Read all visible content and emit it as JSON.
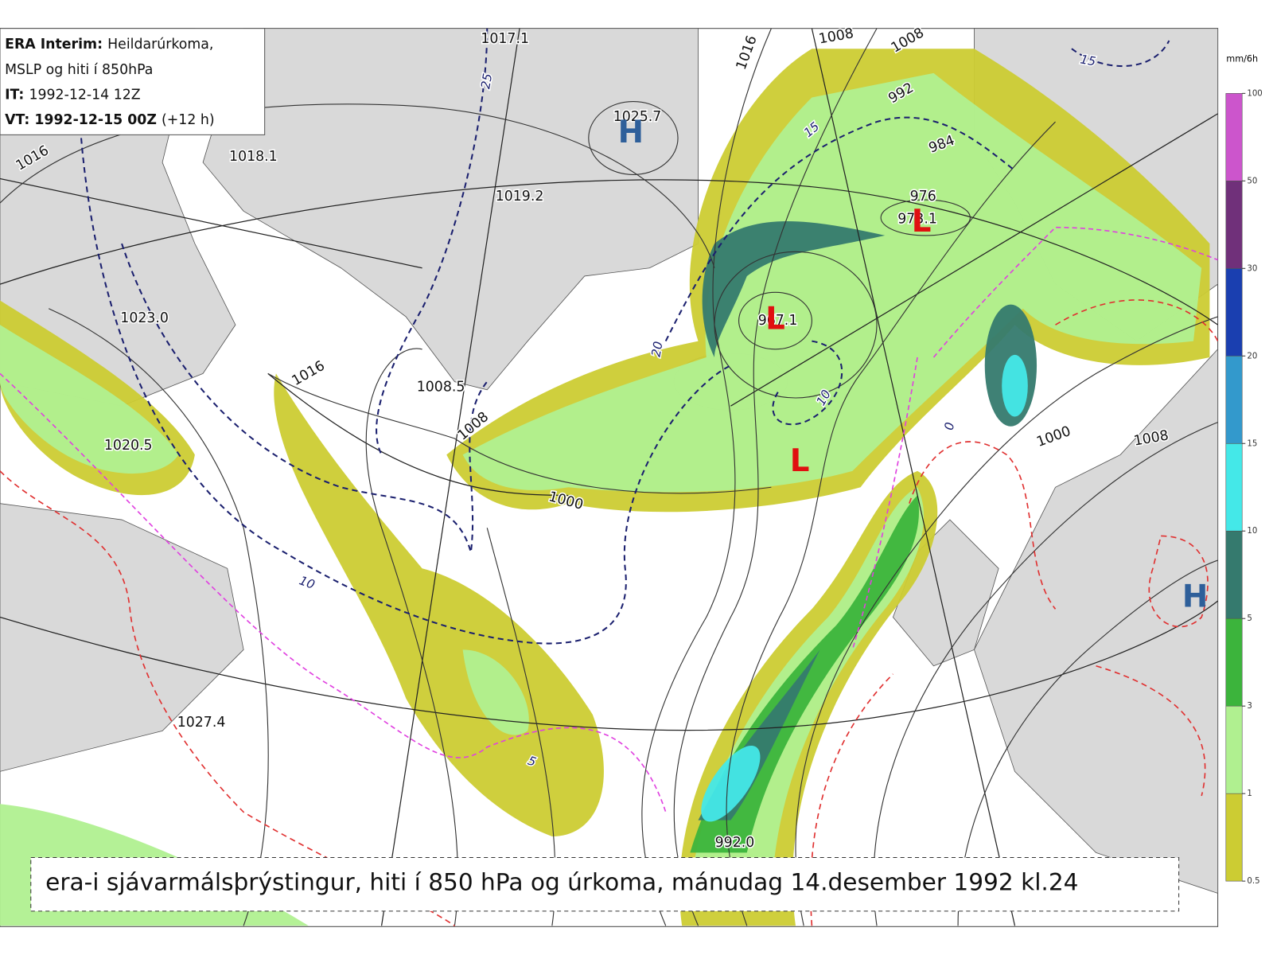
{
  "info_box": {
    "lines": [
      {
        "bold": "ERA Interim:",
        "text": "Heildarúrkoma,"
      },
      {
        "text": "MSLP og hiti í 850hPa"
      },
      {
        "bold": "IT:",
        "text": "1992-12-14 12Z"
      },
      {
        "bold": "VT: 1992-12-15 00Z",
        "text": "(+12 h)"
      }
    ]
  },
  "center_values": [
    "1017.1",
    "1018.1",
    "1025.7",
    "1019.2",
    "1023.0",
    "1008.5",
    "1020.5",
    "1027.4",
    "992.0",
    "967.1",
    "973.1"
  ],
  "contour_labels": [
    "1016",
    "1016",
    "1008",
    "1008",
    "992",
    "984",
    "976",
    "1016",
    "1008",
    "1000",
    "1000",
    "1008"
  ],
  "temperature_labels": [
    "15",
    "25",
    "15",
    "20",
    "10",
    "5",
    "0",
    "10"
  ],
  "system_markers": [
    {
      "letter": "H",
      "color": "#2e5f9a"
    },
    {
      "letter": "L",
      "color": "#e01010"
    },
    {
      "letter": "L",
      "color": "#e01010"
    },
    {
      "letter": "L",
      "color": "#e01010"
    },
    {
      "letter": "H",
      "color": "#2e5f9a"
    }
  ],
  "colorbar": {
    "unit": "mm/6h",
    "ticks": [
      0.5,
      1,
      3,
      5,
      10,
      15,
      20,
      30,
      50,
      100
    ],
    "colors": [
      "#cccc33",
      "#b0f090",
      "#3cb43c",
      "#357a6e",
      "#44e8e8",
      "#3399cc",
      "#1a3fb0",
      "#70307a",
      "#cc55cc"
    ]
  },
  "caption": "era-i sjávarmálsþrýstingur, hiti í 850 hPa og úrkoma, mánudag 14.desember 1992 kl.24"
}
